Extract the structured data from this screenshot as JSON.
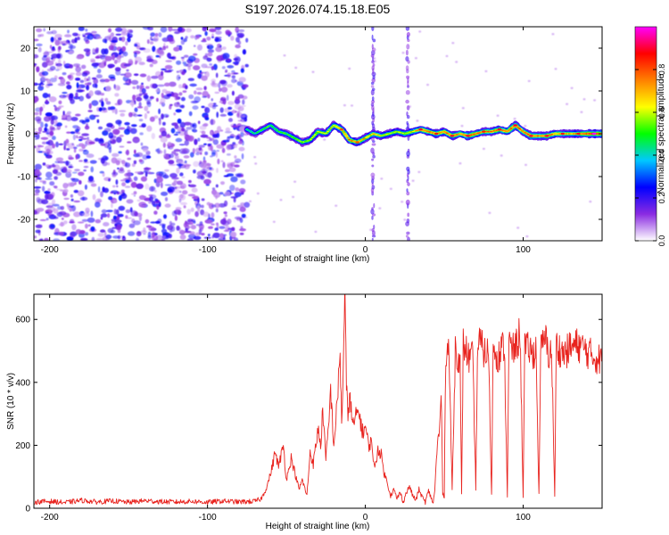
{
  "figure_title": "S197.2026.074.15.18.E05",
  "chart_data": [
    {
      "type": "heatmap",
      "title": "S197.2026.074.15.18.E05",
      "xlabel": "Height of straight line (km)",
      "ylabel": "Frequency (Hz)",
      "xlim": [
        -210,
        150
      ],
      "ylim": [
        -25,
        25
      ],
      "x_ticks": [
        -200,
        -100,
        0,
        100
      ],
      "y_ticks": [
        -20,
        -10,
        0,
        10,
        20
      ],
      "x_tick_labels": [
        "-200",
        "-100",
        "0",
        "100"
      ],
      "y_tick_labels": [
        "-20",
        "-10",
        "0",
        "10",
        "20"
      ],
      "colorbar": {
        "label": "Normalized spectral amplitude",
        "range": [
          0,
          1
        ],
        "ticks": [
          0.0,
          0.2,
          0.4,
          0.6,
          0.8
        ],
        "tick_labels": [
          "0.0",
          "0.2",
          "0.4",
          "0.6",
          "0.8"
        ],
        "colors": [
          "#ffffff",
          "#8a2be2",
          "#0000ff",
          "#00c8ff",
          "#00ff00",
          "#ffff00",
          "#ff8000",
          "#ff0000",
          "#ff00ff"
        ]
      },
      "noise_region_x": [
        -210,
        -75
      ],
      "noise_level": 0.2,
      "streaks": [
        {
          "x": 5,
          "y_range": [
            -25,
            25
          ],
          "amplitude": 0.15
        },
        {
          "x": 27,
          "y_range": [
            -25,
            25
          ],
          "amplitude": 0.15
        }
      ],
      "ridge": [
        {
          "x": -75,
          "y": 1.0,
          "amplitude": 0.45
        },
        {
          "x": -70,
          "y": 0.0,
          "amplitude": 0.45
        },
        {
          "x": -65,
          "y": 1.0,
          "amplitude": 0.5
        },
        {
          "x": -60,
          "y": 2.0,
          "amplitude": 0.5
        },
        {
          "x": -55,
          "y": 0.5,
          "amplitude": 0.5
        },
        {
          "x": -50,
          "y": 0.0,
          "amplitude": 0.5
        },
        {
          "x": -45,
          "y": -1.0,
          "amplitude": 0.55
        },
        {
          "x": -40,
          "y": -2.0,
          "amplitude": 0.55
        },
        {
          "x": -35,
          "y": -1.5,
          "amplitude": 0.55
        },
        {
          "x": -30,
          "y": 0.5,
          "amplitude": 0.6
        },
        {
          "x": -25,
          "y": 0.0,
          "amplitude": 0.6
        },
        {
          "x": -20,
          "y": 2.0,
          "amplitude": 0.65
        },
        {
          "x": -15,
          "y": 1.0,
          "amplitude": 0.7
        },
        {
          "x": -10,
          "y": -1.5,
          "amplitude": 0.75
        },
        {
          "x": -5,
          "y": -2.0,
          "amplitude": 0.7
        },
        {
          "x": 0,
          "y": -1.0,
          "amplitude": 0.7
        },
        {
          "x": 5,
          "y": 0.0,
          "amplitude": 0.65
        },
        {
          "x": 10,
          "y": -0.5,
          "amplitude": 0.65
        },
        {
          "x": 15,
          "y": 0.0,
          "amplitude": 0.6
        },
        {
          "x": 20,
          "y": 0.5,
          "amplitude": 0.6
        },
        {
          "x": 25,
          "y": 0.0,
          "amplitude": 0.6
        },
        {
          "x": 30,
          "y": 0.5,
          "amplitude": 0.65
        },
        {
          "x": 35,
          "y": 1.0,
          "amplitude": 0.8
        },
        {
          "x": 40,
          "y": 0.5,
          "amplitude": 0.75
        },
        {
          "x": 45,
          "y": 0.0,
          "amplitude": 0.75
        },
        {
          "x": 50,
          "y": 0.5,
          "amplitude": 0.75
        },
        {
          "x": 55,
          "y": -0.5,
          "amplitude": 0.8
        },
        {
          "x": 60,
          "y": 0.0,
          "amplitude": 0.75
        },
        {
          "x": 65,
          "y": -0.5,
          "amplitude": 0.8
        },
        {
          "x": 70,
          "y": 0.0,
          "amplitude": 0.8
        },
        {
          "x": 75,
          "y": 0.5,
          "amplitude": 0.75
        },
        {
          "x": 80,
          "y": 0.5,
          "amplitude": 0.75
        },
        {
          "x": 85,
          "y": 1.0,
          "amplitude": 0.8
        },
        {
          "x": 90,
          "y": 0.5,
          "amplitude": 0.75
        },
        {
          "x": 95,
          "y": 2.0,
          "amplitude": 0.8
        },
        {
          "x": 100,
          "y": 0.5,
          "amplitude": 0.75
        },
        {
          "x": 105,
          "y": -0.5,
          "amplitude": 0.8
        },
        {
          "x": 110,
          "y": -0.5,
          "amplitude": 0.75
        },
        {
          "x": 115,
          "y": -0.5,
          "amplitude": 0.8
        },
        {
          "x": 120,
          "y": 0.0,
          "amplitude": 0.7
        },
        {
          "x": 125,
          "y": 0.0,
          "amplitude": 0.75
        },
        {
          "x": 130,
          "y": 0.0,
          "amplitude": 0.7
        },
        {
          "x": 135,
          "y": 0.0,
          "amplitude": 0.75
        },
        {
          "x": 140,
          "y": 0.0,
          "amplitude": 0.85
        },
        {
          "x": 145,
          "y": 0.0,
          "amplitude": 0.9
        },
        {
          "x": 150,
          "y": 0.0,
          "amplitude": 0.85
        }
      ]
    },
    {
      "type": "line",
      "xlabel": "Height of straight line (km)",
      "ylabel": "SNR (10 * v/v)",
      "xlim": [
        -210,
        150
      ],
      "ylim": [
        0,
        680
      ],
      "x_ticks": [
        -200,
        -100,
        0,
        100
      ],
      "y_ticks": [
        0,
        200,
        400,
        600
      ],
      "x_tick_labels": [
        "-200",
        "-100",
        "0",
        "100"
      ],
      "y_tick_labels": [
        "0",
        "200",
        "400",
        "600"
      ],
      "series": [
        {
          "name": "SNR",
          "color": "#e8231e",
          "x": [
            -210,
            -200,
            -190,
            -180,
            -170,
            -160,
            -150,
            -140,
            -130,
            -120,
            -110,
            -100,
            -90,
            -80,
            -70,
            -66,
            -63,
            -60,
            -57,
            -55,
            -52,
            -50,
            -47,
            -45,
            -42,
            -40,
            -37,
            -35,
            -33,
            -30,
            -28,
            -27,
            -25,
            -23,
            -22,
            -20,
            -18,
            -16,
            -15,
            -14,
            -13,
            -12,
            -11,
            -10,
            -8,
            -6,
            -4,
            -2,
            0,
            2,
            4,
            6,
            8,
            10,
            12,
            14,
            16,
            18,
            20,
            22,
            24,
            26,
            28,
            30,
            32,
            34,
            36,
            38,
            40,
            42,
            43,
            44,
            45,
            46,
            47,
            48,
            49,
            50,
            51,
            52,
            53,
            55,
            57,
            59,
            60,
            61,
            62,
            64,
            66,
            68,
            70,
            71,
            72,
            74,
            76,
            78,
            80,
            81,
            82,
            84,
            86,
            88,
            90,
            91,
            92,
            94,
            96,
            98,
            100,
            101,
            102,
            104,
            106,
            108,
            110,
            111,
            112,
            114,
            116,
            118,
            120,
            121,
            122,
            124,
            126,
            128,
            130,
            135,
            140,
            145,
            150
          ],
          "y": [
            20,
            22,
            18,
            25,
            20,
            23,
            19,
            24,
            21,
            20,
            22,
            19,
            23,
            20,
            22,
            30,
            60,
            110,
            180,
            130,
            200,
            90,
            160,
            120,
            60,
            90,
            40,
            180,
            140,
            250,
            200,
            320,
            150,
            280,
            380,
            200,
            320,
            500,
            260,
            450,
            680,
            380,
            300,
            360,
            260,
            290,
            310,
            240,
            260,
            200,
            210,
            120,
            190,
            170,
            110,
            80,
            40,
            60,
            30,
            50,
            20,
            50,
            70,
            40,
            25,
            60,
            35,
            20,
            55,
            30,
            15,
            60,
            150,
            220,
            240,
            380,
            50,
            40,
            500,
            520,
            490,
            60,
            510,
            480,
            450,
            40,
            520,
            500,
            470,
            480,
            60,
            490,
            530,
            510,
            490,
            500,
            40,
            520,
            510,
            480,
            500,
            520,
            40,
            530,
            510,
            500,
            520,
            560,
            40,
            520,
            500,
            510,
            480,
            520,
            40,
            500,
            510,
            540,
            490,
            500,
            40,
            520,
            510,
            500,
            490,
            500,
            510,
            520,
            500,
            480,
            470
          ]
        }
      ]
    }
  ]
}
